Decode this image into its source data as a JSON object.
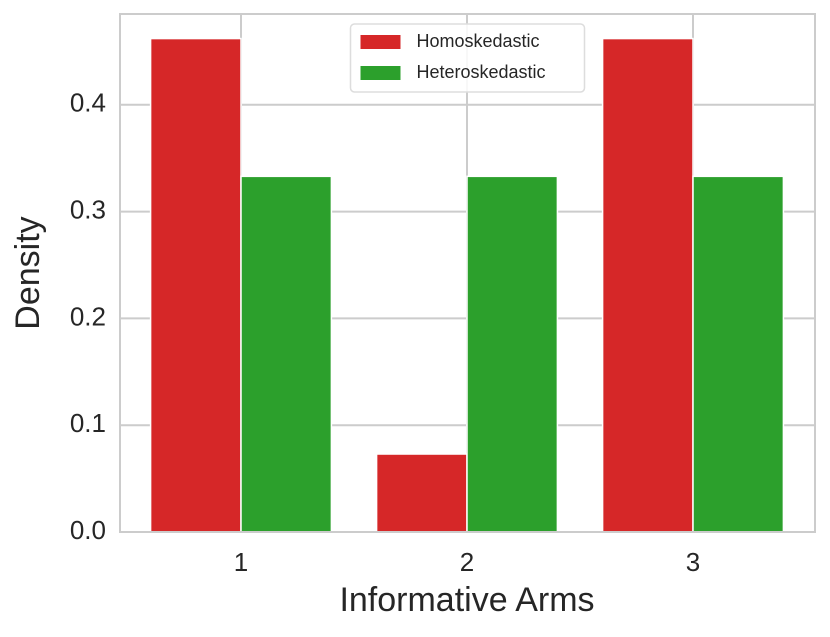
{
  "chart_data": {
    "type": "bar",
    "x_label": "Informative Arms",
    "y_label": "Density",
    "categories": [
      "1",
      "2",
      "3"
    ],
    "series": [
      {
        "name": "Homoskedastic",
        "color": "#d62728",
        "values": [
          0.462,
          0.073,
          0.462
        ]
      },
      {
        "name": "Heteroskedastic",
        "color": "#2ca02c",
        "values": [
          0.333,
          0.333,
          0.333
        ]
      }
    ],
    "ylim": [
      0,
      0.485
    ],
    "yticks": [
      {
        "value": 0,
        "label": "0.0"
      },
      0.1,
      0.2,
      0.3,
      0.4
    ],
    "grid": true,
    "legend": "upper center"
  }
}
